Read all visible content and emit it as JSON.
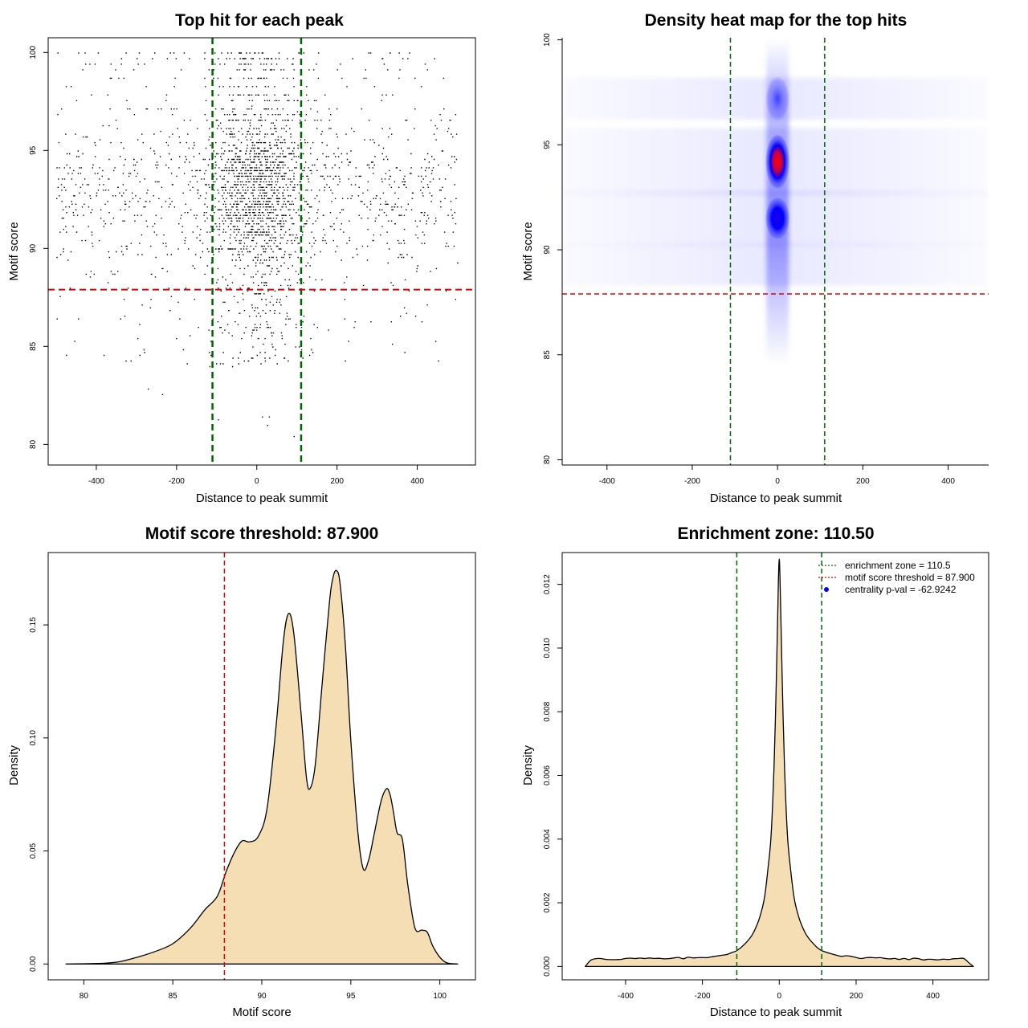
{
  "chart_data": [
    {
      "type": "scatter",
      "title": "Top hit for each peak",
      "xlabel": "Distance to peak summit",
      "ylabel": "Motif score",
      "xlim": [
        -520,
        545
      ],
      "ylim": [
        78.95,
        100.75
      ],
      "xticks": [
        -400,
        -200,
        0,
        200,
        400
      ],
      "yticks": [
        80,
        85,
        90,
        95,
        100
      ],
      "xtick_labels": [
        "-400",
        "-200",
        "0",
        "200",
        "400"
      ],
      "ytick_labels": [
        "80",
        "85",
        "90",
        "95",
        "100"
      ],
      "vlines": [
        -110.5,
        110.5
      ],
      "hline": 87.9,
      "point_count": 9000,
      "point_distribution": "dense cluster centered at distance 0 (spread ~60), uniform background between -500 and 500; scores concentrated on discrete levels between 84 and 100 with modes near 91.5, 94.2 and 97.2",
      "colors": {
        "points": "#000000",
        "vlines": "#006400",
        "hline": "#dd0000"
      }
    },
    {
      "type": "heatmap",
      "title": "Density heat map for the top hits",
      "xlabel": "Distance to peak summit",
      "ylabel": "Motif score",
      "xlim": [
        -505,
        495
      ],
      "ylim": [
        79.75,
        100.1
      ],
      "xticks": [
        -400,
        -200,
        0,
        200,
        400
      ],
      "yticks": [
        80,
        85,
        90,
        95,
        100
      ],
      "xtick_labels": [
        "-400",
        "-200",
        "0",
        "200",
        "400"
      ],
      "ytick_labels": [
        "80",
        "85",
        "90",
        "95",
        "100"
      ],
      "vlines": [
        -110.5,
        110.5
      ],
      "hline": 87.9,
      "hotspots": [
        {
          "x": 0,
          "y": 94.2,
          "intensity": 1.0
        },
        {
          "x": 0,
          "y": 91.5,
          "intensity": 0.65
        },
        {
          "x": 0,
          "y": 97.2,
          "intensity": 0.45
        }
      ],
      "colors": {
        "low": "#ffffff",
        "mid": "#0000ff",
        "high": "#ff0000",
        "vlines": "#006400",
        "hline": "#dd0000"
      }
    },
    {
      "type": "area",
      "title": "Motif score threshold: 87.900",
      "xlabel": "Motif score",
      "ylabel": "Density",
      "xlim": [
        78,
        102
      ],
      "ylim": [
        -0.007,
        0.182
      ],
      "xticks": [
        80,
        85,
        90,
        95,
        100
      ],
      "yticks": [
        0.0,
        0.05,
        0.1,
        0.15
      ],
      "xtick_labels": [
        "80",
        "85",
        "90",
        "95",
        "100"
      ],
      "ytick_labels": [
        "0.00",
        "0.05",
        "0.10",
        "0.15"
      ],
      "vline": 87.9,
      "x": [
        79,
        81,
        82,
        83,
        84,
        85,
        86,
        86.8,
        87.5,
        88,
        88.5,
        88.9,
        89.3,
        89.8,
        90.3,
        90.8,
        91.2,
        91.5,
        91.8,
        92.2,
        92.5,
        92.7,
        93,
        93.4,
        93.8,
        94,
        94.2,
        94.4,
        94.7,
        95,
        95.4,
        95.7,
        96,
        96.3,
        96.7,
        97,
        97.2,
        97.4,
        97.6,
        97.9,
        98.2,
        98.6,
        99,
        99.3,
        99.6,
        100,
        100.4,
        101
      ],
      "y": [
        0.0,
        0.0003,
        0.001,
        0.003,
        0.0055,
        0.009,
        0.016,
        0.024,
        0.03,
        0.041,
        0.05,
        0.0545,
        0.054,
        0.0565,
        0.069,
        0.105,
        0.142,
        0.155,
        0.146,
        0.111,
        0.083,
        0.0775,
        0.088,
        0.125,
        0.16,
        0.171,
        0.174,
        0.168,
        0.14,
        0.099,
        0.058,
        0.042,
        0.046,
        0.057,
        0.072,
        0.0775,
        0.075,
        0.067,
        0.058,
        0.055,
        0.035,
        0.016,
        0.015,
        0.014,
        0.008,
        0.003,
        0.0005,
        0.0
      ],
      "colors": {
        "fill": "#f5deb3",
        "line": "#000000",
        "vline": "#dd0000"
      }
    },
    {
      "type": "area",
      "title": "Enrichment zone: 110.50",
      "xlabel": "Distance to peak summit",
      "ylabel": "Density",
      "xlim": [
        -565,
        545
      ],
      "ylim": [
        -0.00042,
        0.013
      ],
      "xticks": [
        -400,
        -200,
        0,
        200,
        400
      ],
      "yticks": [
        0.0,
        0.002,
        0.004,
        0.006,
        0.008,
        0.01,
        0.012
      ],
      "xtick_labels": [
        "-400",
        "-200",
        "0",
        "200",
        "400"
      ],
      "ytick_labels": [
        "0.000",
        "0.002",
        "0.004",
        "0.006",
        "0.008",
        "0.010",
        "0.012"
      ],
      "vlines": [
        -110.5,
        110.5
      ],
      "x": [
        -505,
        -490,
        -470,
        -450,
        -400,
        -300,
        -200,
        -150,
        -110,
        -90,
        -70,
        -55,
        -45,
        -38,
        -30,
        -22,
        -15,
        -10,
        -5,
        -2,
        0,
        2,
        5,
        10,
        15,
        22,
        30,
        38,
        45,
        55,
        70,
        90,
        110,
        150,
        200,
        300,
        400,
        480,
        495,
        505
      ],
      "y": [
        0.0,
        0.0002,
        0.00025,
        0.00022,
        0.00025,
        0.00024,
        0.00028,
        0.00035,
        0.0005,
        0.0007,
        0.001,
        0.0014,
        0.0018,
        0.0022,
        0.003,
        0.004,
        0.0058,
        0.0078,
        0.0105,
        0.0122,
        0.0128,
        0.0122,
        0.0105,
        0.0078,
        0.0058,
        0.004,
        0.003,
        0.0022,
        0.0018,
        0.0014,
        0.001,
        0.0007,
        0.0005,
        0.00035,
        0.00028,
        0.00025,
        0.00022,
        0.00025,
        0.0001,
        0.0
      ],
      "legend": [
        {
          "label": "enrichment zone = 110.5",
          "style": "dotted",
          "color": "#006400"
        },
        {
          "label": "motif score threshold = 87.900",
          "style": "dotted",
          "color": "#dd0000"
        },
        {
          "label": "centrality p-val = -62.9242",
          "style": "point",
          "color": "#0000ff"
        }
      ],
      "legend_position": "top-right",
      "colors": {
        "fill": "#f5deb3",
        "line": "#000000",
        "vlines": "#006400"
      }
    }
  ]
}
